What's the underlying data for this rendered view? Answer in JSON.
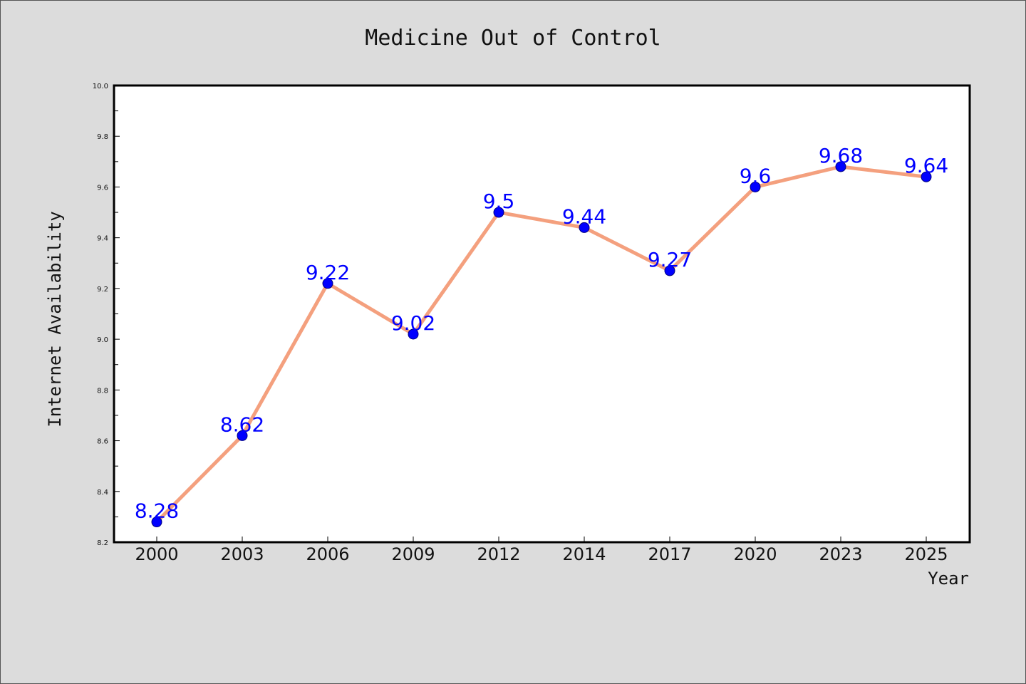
{
  "chart_data": {
    "type": "line",
    "title": "Medicine Out of Control",
    "xlabel": "Year",
    "ylabel": "Internet Availability",
    "categories": [
      "2000",
      "2003",
      "2006",
      "2009",
      "2012",
      "2014",
      "2017",
      "2020",
      "2023",
      "2025"
    ],
    "series": [
      {
        "values": [
          8.28,
          8.62,
          9.22,
          9.02,
          9.5,
          9.44,
          9.27,
          9.6,
          9.68,
          9.64
        ]
      }
    ],
    "data_labels": [
      "8.28",
      "8.62",
      "9.22",
      "9.02",
      "9.5",
      "9.44",
      "9.27",
      "9.6",
      "9.68",
      "9.64"
    ],
    "ylim": [
      8.2,
      10.0
    ],
    "yticks": [
      "8.2",
      "8.4",
      "8.6",
      "8.8",
      "9.0",
      "9.2",
      "9.4",
      "9.6",
      "9.8",
      "10.0"
    ],
    "grid": false,
    "legend": "none",
    "colors": {
      "line": "#f4a07e",
      "marker": "#0000ff",
      "marker_edge": "#000080",
      "label": "#0000ff",
      "plot_bg": "#ffffff",
      "figure_bg": "#dcdcdc"
    }
  }
}
